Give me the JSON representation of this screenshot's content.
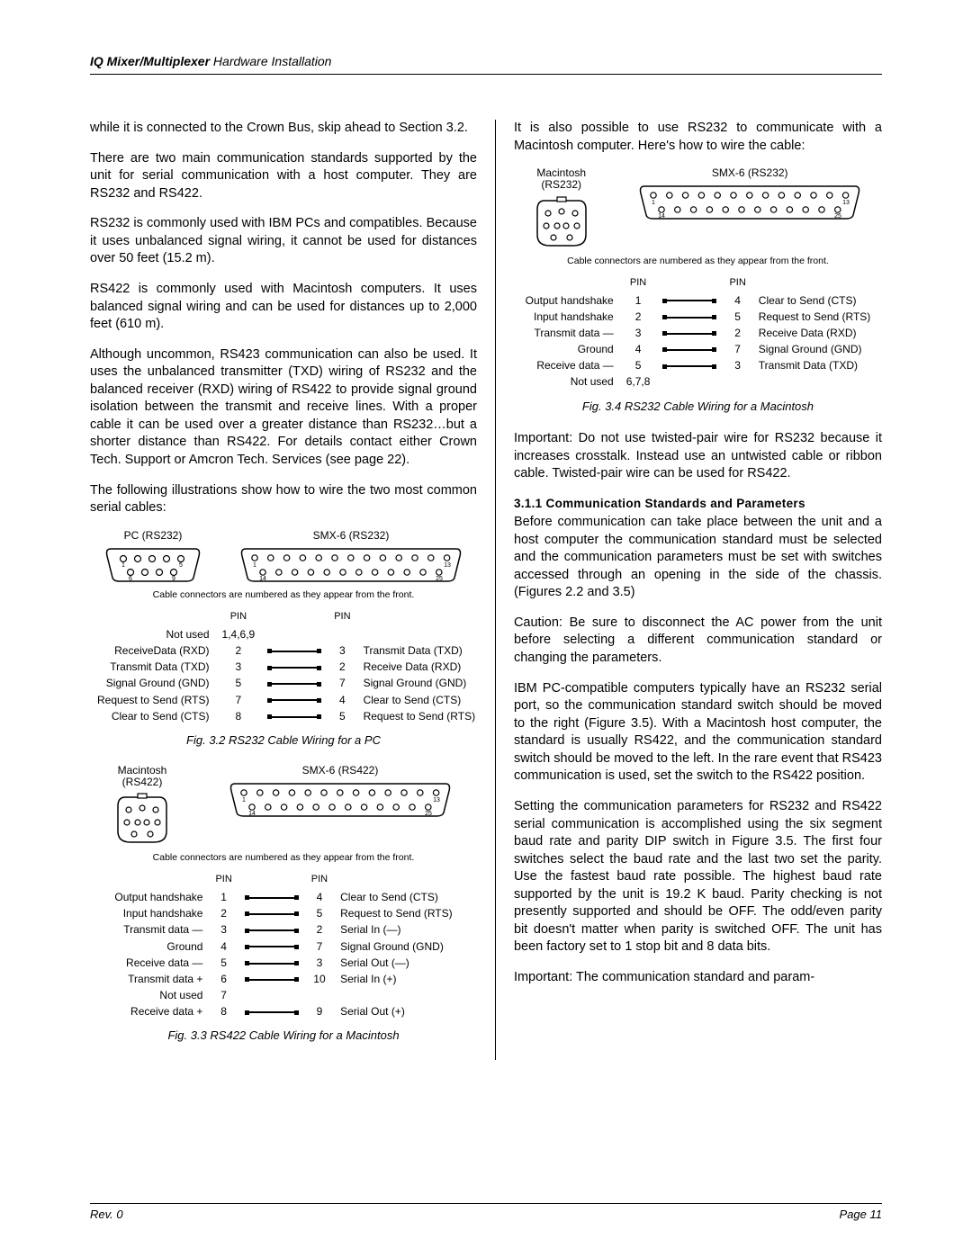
{
  "header": {
    "bold": "IQ Mixer/Multiplexer",
    "light": " Hardware Installation"
  },
  "footer": {
    "rev": "Rev. 0",
    "page": "Page 11"
  },
  "left": {
    "p1": "while it is connected to the Crown Bus, skip ahead to Section 3.2.",
    "p2": "There are two main communication standards supported by the unit for serial communication with a host computer. They are RS232 and RS422.",
    "p3": "RS232 is commonly used with IBM PCs and compatibles. Because it uses unbalanced signal wiring, it cannot be used for distances over 50 feet (15.2 m).",
    "p4": "RS422 is commonly used with Macintosh computers. It uses balanced signal wiring and can be used for distances up to 2,000 feet (610 m).",
    "p5": "Although uncommon, RS423 communication can also be used. It uses the unbalanced transmitter (TXD) wiring of RS232 and the balanced receiver (RXD) wiring of RS422 to provide signal ground isolation between the transmit and receive lines. With a proper cable it can be used over a greater distance than RS232…but a shorter distance than RS422. For details contact either Crown Tech. Support or Amcron Tech. Services (see page 22).",
    "p6": "The following illustrations show how to wire the two most common serial cables:"
  },
  "right": {
    "p1": "It is also possible to use RS232 to communicate with a Macintosh computer. Here's how to wire the cable:",
    "p2": "Important: Do not use twisted-pair wire for RS232 because it increases crosstalk. Instead use an untwisted cable or ribbon cable. Twisted-pair wire can be used for RS422.",
    "subhead": "3.1.1 Communication Standards and Parameters",
    "p3": "Before communication can take place between the unit and a host computer the communication standard must be selected and the communication parameters must be set with switches accessed through an opening in the side of the chassis. (Figures 2.2 and 3.5)",
    "p4": "Caution: Be sure to disconnect the AC power from the unit before selecting a different communication standard or changing the parameters.",
    "p5": "IBM PC-compatible computers typically have an RS232 serial port, so the communication standard switch should be moved to the right (Figure 3.5). With a Macintosh host computer, the standard is usually RS422, and the communication standard switch should be moved to the left. In the rare event that RS423 communication is used, set the switch to the RS422 position.",
    "p6": "Setting the communication parameters for RS232 and RS422 serial communication is accomplished using the six segment baud rate and parity DIP switch in Figure 3.5. The first four switches select the baud rate and the last two set the parity. Use the fastest baud rate possible. The highest baud rate supported by the unit is 19.2 K baud. Parity checking is not presently supported and should be OFF. The odd/even parity bit doesn't matter when parity is switched OFF. The unit has been factory set to 1 stop bit and 8 data bits.",
    "p7": "Important: The communication standard and param-"
  },
  "note": "Cable connectors are numbered as they appear from the front.",
  "pinword": "PIN",
  "fig32": {
    "labelLeft": "PC (RS232)",
    "labelRight": "SMX-6 (RS232)",
    "caption": "Fig. 3.2  RS232 Cable Wiring for a PC",
    "rows": [
      {
        "l": "Not used",
        "a": "1,4,6,9",
        "b": "",
        "r": "",
        "wire": false
      },
      {
        "l": "ReceiveData (RXD)",
        "a": "2",
        "b": "3",
        "r": "Transmit Data (TXD)",
        "wire": true
      },
      {
        "l": "Transmit Data (TXD)",
        "a": "3",
        "b": "2",
        "r": "Receive Data (RXD)",
        "wire": true
      },
      {
        "l": "Signal Ground (GND)",
        "a": "5",
        "b": "7",
        "r": "Signal Ground (GND)",
        "wire": true
      },
      {
        "l": "Request to Send (RTS)",
        "a": "7",
        "b": "4",
        "r": "Clear to Send (CTS)",
        "wire": true
      },
      {
        "l": "Clear to Send (CTS)",
        "a": "8",
        "b": "5",
        "r": "Request to Send (RTS)",
        "wire": true
      }
    ]
  },
  "fig33": {
    "labelLeft1": "Macintosh",
    "labelLeft2": "(RS422)",
    "labelRight": "SMX-6 (RS422)",
    "caption": "Fig. 3.3  RS422 Cable Wiring for a Macintosh",
    "rows": [
      {
        "l": "Output handshake",
        "a": "1",
        "b": "4",
        "r": "Clear to Send (CTS)",
        "wire": true
      },
      {
        "l": "Input handshake",
        "a": "2",
        "b": "5",
        "r": "Request to Send (RTS)",
        "wire": true
      },
      {
        "l": "Transmit data —",
        "a": "3",
        "b": "2",
        "r": "Serial In (—)",
        "wire": true
      },
      {
        "l": "Ground",
        "a": "4",
        "b": "7",
        "r": "Signal Ground (GND)",
        "wire": true
      },
      {
        "l": "Receive data —",
        "a": "5",
        "b": "3",
        "r": "Serial Out (—)",
        "wire": true
      },
      {
        "l": "Transmit data +",
        "a": "6",
        "b": "10",
        "r": "Serial In (+)",
        "wire": true
      },
      {
        "l": "Not used",
        "a": "7",
        "b": "",
        "r": "",
        "wire": false
      },
      {
        "l": "Receive data +",
        "a": "8",
        "b": "9",
        "r": "Serial Out  (+)",
        "wire": true
      }
    ]
  },
  "fig34": {
    "labelLeft1": "Macintosh",
    "labelLeft2": "(RS232)",
    "labelRight": "SMX-6 (RS232)",
    "caption": "Fig. 3.4  RS232 Cable Wiring for a Macintosh",
    "rows": [
      {
        "l": "Output handshake",
        "a": "1",
        "b": "4",
        "r": "Clear to Send (CTS)",
        "wire": true
      },
      {
        "l": "Input handshake",
        "a": "2",
        "b": "5",
        "r": "Request to Send (RTS)",
        "wire": true
      },
      {
        "l": "Transmit data —",
        "a": "3",
        "b": "2",
        "r": "Receive Data (RXD)",
        "wire": true
      },
      {
        "l": "Ground",
        "a": "4",
        "b": "7",
        "r": "Signal Ground (GND)",
        "wire": true
      },
      {
        "l": "Receive data —",
        "a": "5",
        "b": "3",
        "r": "Transmit Data (TXD)",
        "wire": true
      },
      {
        "l": "Not used",
        "a": "6,7,8",
        "b": "",
        "r": "",
        "wire": false
      }
    ]
  },
  "db9": {
    "nums": [
      "1",
      "5",
      "6",
      "9"
    ]
  },
  "db25": {
    "nums": [
      "1",
      "13",
      "14",
      "25"
    ]
  }
}
